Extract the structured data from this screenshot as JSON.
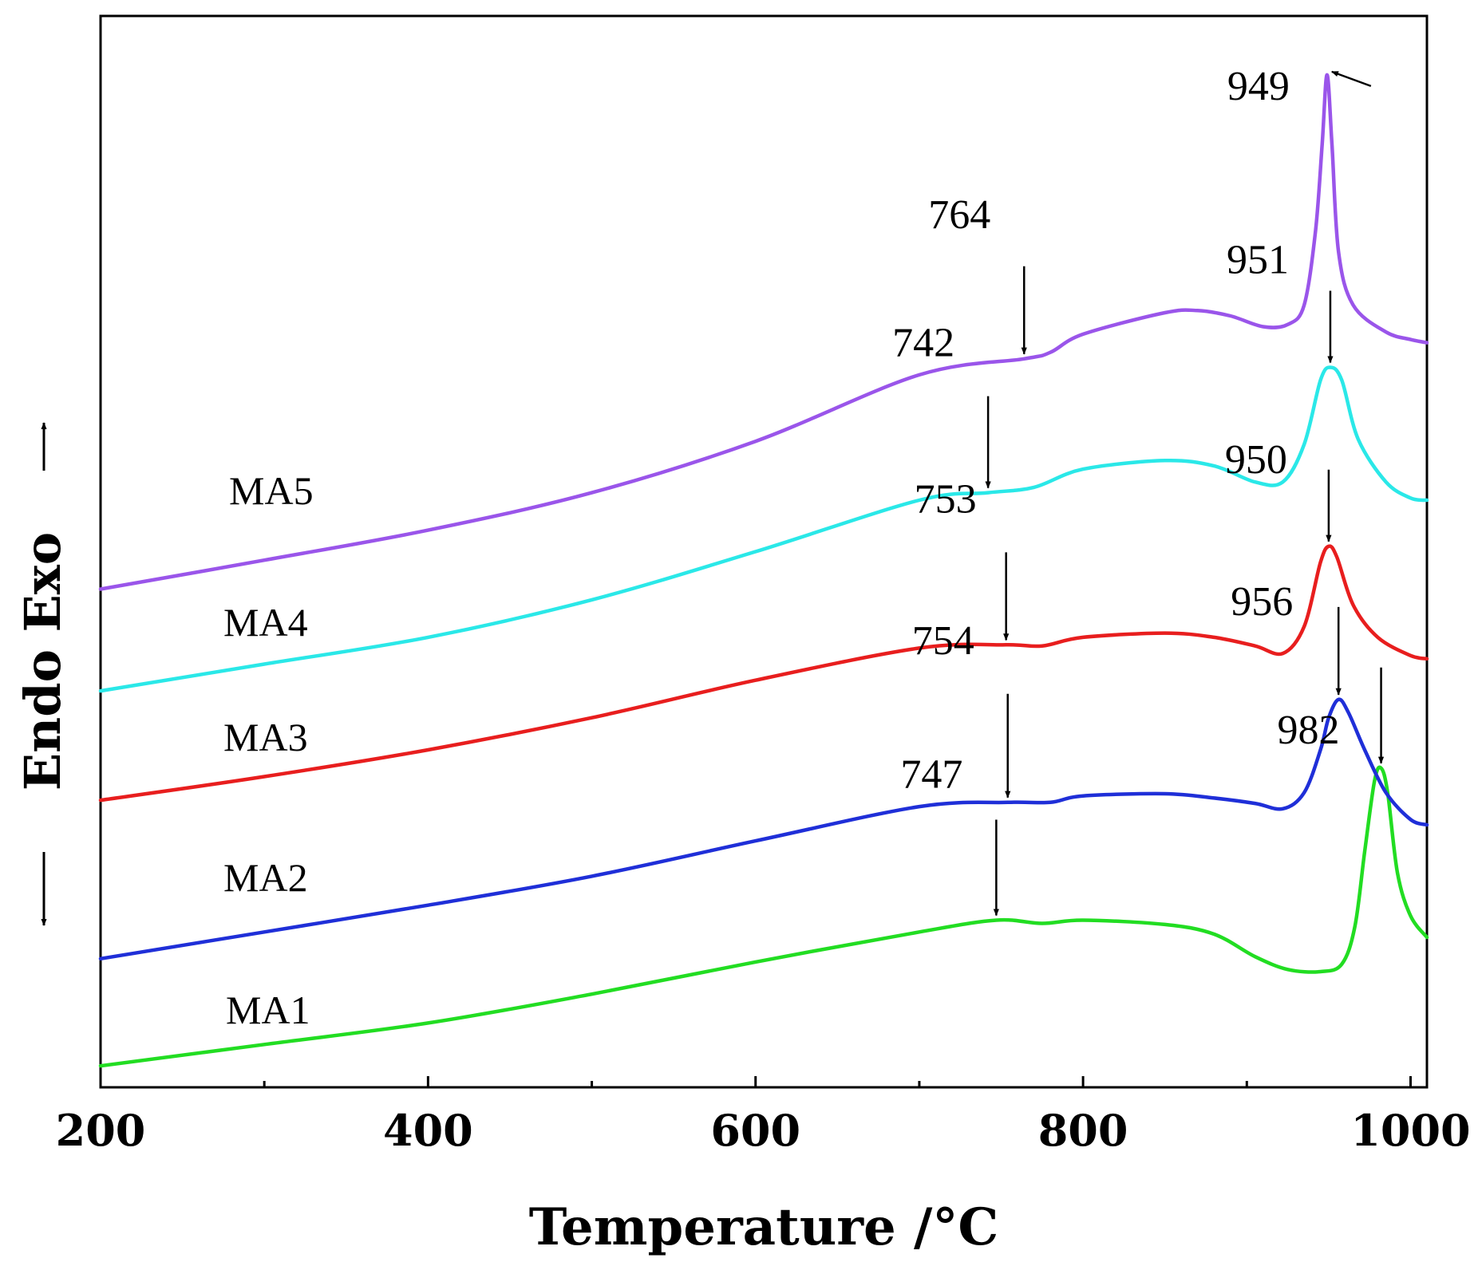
{
  "chart_data": {
    "type": "line",
    "title": "",
    "xlabel": "Temperature /°C",
    "ylabel": "Endo Exo",
    "xlim": [
      200,
      1010
    ],
    "ylim": [
      0,
      100
    ],
    "grid": false,
    "y_ticks_shown": false,
    "x_ticks": [
      200,
      400,
      600,
      800,
      1000
    ],
    "x_minor_ticks": [
      300,
      500,
      700,
      900
    ],
    "series": [
      {
        "name": "MA1",
        "color": "#22dd22",
        "points": [
          [
            200,
            2
          ],
          [
            300,
            4
          ],
          [
            400,
            6
          ],
          [
            500,
            8.7
          ],
          [
            600,
            11.7
          ],
          [
            700,
            14.5
          ],
          [
            747,
            15.6
          ],
          [
            775,
            15.3
          ],
          [
            800,
            15.6
          ],
          [
            850,
            15.2
          ],
          [
            880,
            14.3
          ],
          [
            905,
            12.2
          ],
          [
            925,
            11
          ],
          [
            945,
            10.8
          ],
          [
            958,
            11.5
          ],
          [
            966,
            15
          ],
          [
            972,
            22
          ],
          [
            978,
            28.6
          ],
          [
            982,
            29.8
          ],
          [
            986,
            27.5
          ],
          [
            992,
            20
          ],
          [
            1000,
            16
          ],
          [
            1010,
            14
          ]
        ]
      },
      {
        "name": "MA2",
        "color": "#1f2fd8",
        "points": [
          [
            200,
            12
          ],
          [
            300,
            14.5
          ],
          [
            400,
            17
          ],
          [
            500,
            19.7
          ],
          [
            600,
            23
          ],
          [
            700,
            26.2
          ],
          [
            754,
            26.6
          ],
          [
            780,
            26.6
          ],
          [
            800,
            27.2
          ],
          [
            850,
            27.4
          ],
          [
            880,
            27
          ],
          [
            905,
            26.5
          ],
          [
            922,
            26
          ],
          [
            935,
            27.5
          ],
          [
            945,
            31.5
          ],
          [
            950,
            34.5
          ],
          [
            956,
            36.2
          ],
          [
            962,
            35
          ],
          [
            972,
            31.5
          ],
          [
            985,
            27.5
          ],
          [
            1000,
            25
          ],
          [
            1010,
            24.5
          ]
        ]
      },
      {
        "name": "MA3",
        "color": "#e81e1e",
        "points": [
          [
            200,
            26.8
          ],
          [
            300,
            29
          ],
          [
            400,
            31.5
          ],
          [
            500,
            34.5
          ],
          [
            600,
            38
          ],
          [
            700,
            41
          ],
          [
            753,
            41.3
          ],
          [
            775,
            41.2
          ],
          [
            800,
            42
          ],
          [
            850,
            42.4
          ],
          [
            880,
            42
          ],
          [
            905,
            41.2
          ],
          [
            922,
            40.5
          ],
          [
            935,
            43
          ],
          [
            945,
            49
          ],
          [
            950,
            50.5
          ],
          [
            955,
            49.5
          ],
          [
            965,
            45
          ],
          [
            980,
            42
          ],
          [
            1000,
            40.3
          ],
          [
            1010,
            40
          ]
        ]
      },
      {
        "name": "MA4",
        "color": "#2ae8e8",
        "points": [
          [
            200,
            37
          ],
          [
            300,
            39.5
          ],
          [
            400,
            42
          ],
          [
            500,
            45.5
          ],
          [
            600,
            50
          ],
          [
            700,
            54.8
          ],
          [
            742,
            55.5
          ],
          [
            770,
            56
          ],
          [
            800,
            57.7
          ],
          [
            850,
            58.5
          ],
          [
            880,
            58
          ],
          [
            905,
            56.5
          ],
          [
            922,
            56.5
          ],
          [
            935,
            60
          ],
          [
            945,
            66
          ],
          [
            951,
            67.2
          ],
          [
            958,
            66
          ],
          [
            968,
            60.5
          ],
          [
            985,
            56.5
          ],
          [
            1000,
            55
          ],
          [
            1010,
            54.8
          ]
        ]
      },
      {
        "name": "MA5",
        "color": "#9a55ea",
        "points": [
          [
            200,
            46.5
          ],
          [
            300,
            49.2
          ],
          [
            400,
            52
          ],
          [
            500,
            55.5
          ],
          [
            600,
            60.3
          ],
          [
            700,
            66.5
          ],
          [
            764,
            68
          ],
          [
            780,
            68.6
          ],
          [
            800,
            70.3
          ],
          [
            850,
            72.3
          ],
          [
            870,
            72.5
          ],
          [
            890,
            72
          ],
          [
            910,
            71
          ],
          [
            925,
            71.2
          ],
          [
            935,
            73
          ],
          [
            942,
            80
          ],
          [
            946,
            88
          ],
          [
            949,
            94.5
          ],
          [
            952,
            88
          ],
          [
            956,
            78
          ],
          [
            965,
            73
          ],
          [
            985,
            70.5
          ],
          [
            1000,
            69.8
          ],
          [
            1010,
            69.5
          ]
        ]
      }
    ],
    "annotations": [
      {
        "text": "764",
        "x": 764,
        "series": "MA5"
      },
      {
        "text": "949",
        "x": 949,
        "series": "MA5"
      },
      {
        "text": "742",
        "x": 742,
        "series": "MA4"
      },
      {
        "text": "951",
        "x": 951,
        "series": "MA4"
      },
      {
        "text": "753",
        "x": 753,
        "series": "MA3"
      },
      {
        "text": "950",
        "x": 950,
        "series": "MA3"
      },
      {
        "text": "754",
        "x": 754,
        "series": "MA2"
      },
      {
        "text": "956",
        "x": 956,
        "series": "MA2"
      },
      {
        "text": "747",
        "x": 747,
        "series": "MA1"
      },
      {
        "text": "982",
        "x": 982,
        "series": "MA1"
      }
    ]
  }
}
